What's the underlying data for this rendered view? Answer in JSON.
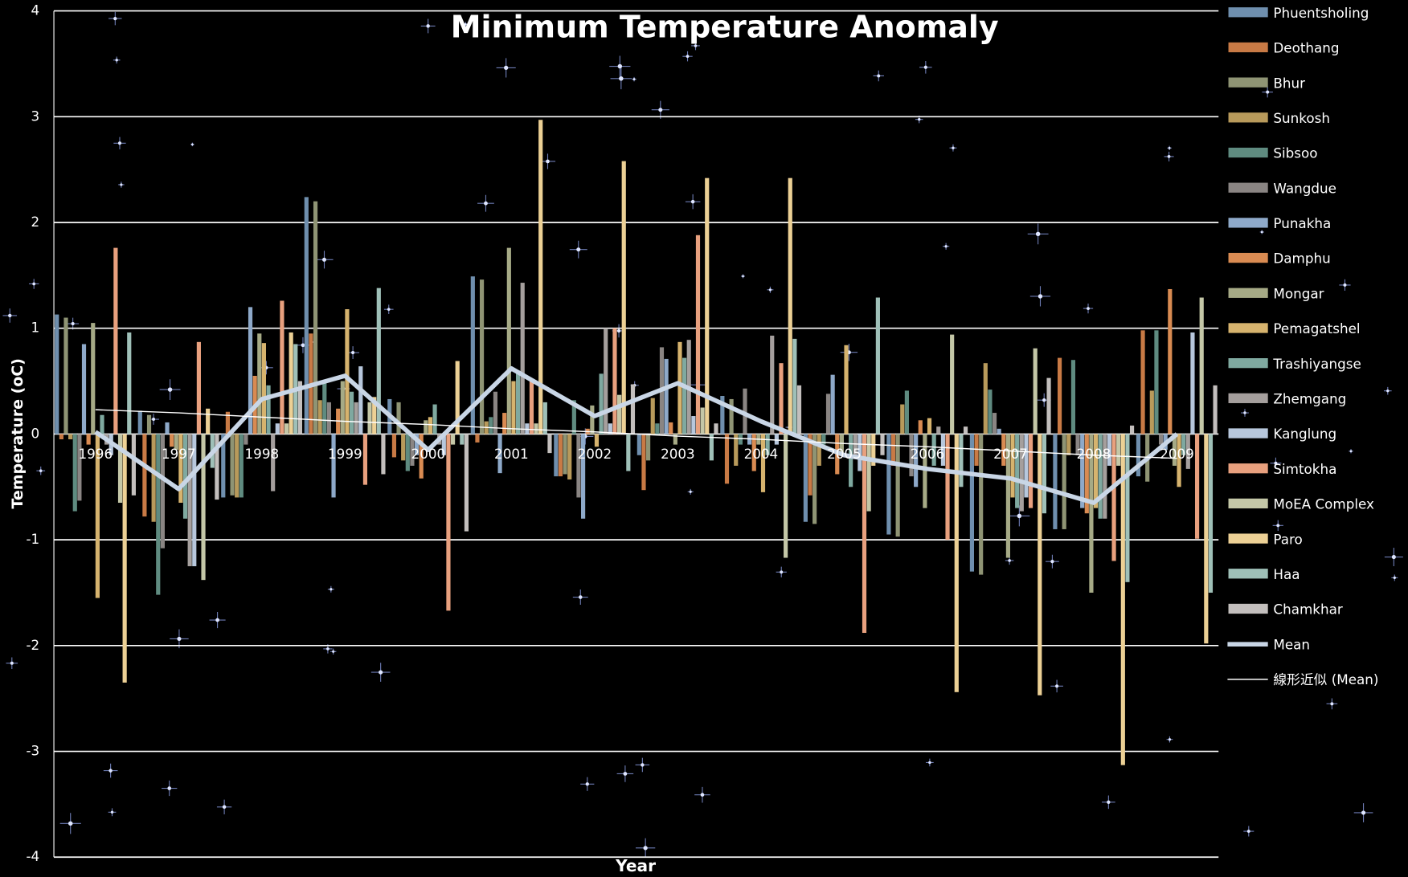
{
  "chart_data": {
    "type": "bar",
    "title": "Minimum Temperature Anomaly",
    "x_label": "Year",
    "y_label": "Temperature (oC)",
    "categories": [
      "1996",
      "1997",
      "1998",
      "1999",
      "2000",
      "2001",
      "2002",
      "2003",
      "2004",
      "2005",
      "2006",
      "2007",
      "2008",
      "2009"
    ],
    "ylim": [
      -4,
      4
    ],
    "yticks": [
      -4,
      -3,
      -2,
      -1,
      0,
      1,
      2,
      3,
      4
    ],
    "grid": true,
    "legend": "right",
    "series": [
      {
        "name": "Phuentsholing",
        "color": "#6f8fae",
        "values": [
          1.13,
          0.22,
          -0.6,
          2.24,
          0.33,
          1.49,
          -0.4,
          -0.2,
          0.36,
          -0.83,
          -0.95,
          -1.3,
          -0.9,
          -0.4
        ]
      },
      {
        "name": "Deothang",
        "color": "#c87a45",
        "values": [
          -0.05,
          -0.78,
          0.21,
          0.95,
          -0.22,
          -0.08,
          -0.4,
          -0.53,
          -0.47,
          -0.58,
          -0.3,
          -0.3,
          0.72,
          0.98
        ]
      },
      {
        "name": "Bhur",
        "color": "#8f9474",
        "values": [
          1.1,
          0.18,
          -0.58,
          2.2,
          0.3,
          1.46,
          -0.38,
          -0.25,
          0.33,
          -0.85,
          -0.97,
          -1.33,
          -0.9,
          -0.45
        ]
      },
      {
        "name": "Sunkosh",
        "color": "#b89a5b",
        "values": [
          -0.05,
          -0.83,
          -0.6,
          0.32,
          -0.25,
          0.12,
          -0.43,
          0.34,
          -0.3,
          -0.3,
          0.28,
          0.67,
          -0.2,
          0.41
        ]
      },
      {
        "name": "Sibsoo",
        "color": "#5f8b80",
        "values": [
          -0.73,
          -1.52,
          -0.6,
          0.5,
          -0.35,
          0.16,
          0.32,
          0.1,
          -0.1,
          -0.1,
          0.41,
          0.42,
          0.7,
          0.98
        ]
      },
      {
        "name": "Wangdue",
        "color": "#8a8583",
        "values": [
          -0.63,
          -1.08,
          -0.1,
          0.3,
          -0.3,
          0.4,
          -0.6,
          0.82,
          0.43,
          0.38,
          -0.4,
          0.2,
          -0.2,
          -0.1
        ]
      },
      {
        "name": "Punakha",
        "color": "#8ea9c9",
        "values": [
          0.85,
          0.11,
          1.2,
          -0.6,
          -0.2,
          -0.37,
          -0.8,
          0.71,
          -0.1,
          0.56,
          -0.5,
          0.05,
          -0.7,
          -0.15
        ]
      },
      {
        "name": "Damphu",
        "color": "#d98b52",
        "values": [
          -0.1,
          -0.12,
          0.55,
          0.24,
          -0.42,
          0.2,
          0.05,
          0.11,
          -0.35,
          -0.38,
          0.13,
          -0.3,
          -0.75,
          1.37
        ]
      },
      {
        "name": "Mongar",
        "color": "#a6aa86",
        "values": [
          1.05,
          -0.15,
          0.95,
          0.5,
          0.13,
          1.76,
          0.27,
          -0.1,
          -0.1,
          -0.2,
          -0.7,
          -1.17,
          -1.5,
          -0.3
        ]
      },
      {
        "name": "Pemagatshel",
        "color": "#d6b36e",
        "values": [
          -1.55,
          -0.65,
          0.86,
          1.18,
          0.16,
          0.5,
          -0.12,
          0.87,
          -0.55,
          0.84,
          0.15,
          -0.6,
          -0.7,
          -0.5
        ]
      },
      {
        "name": "Trashiyangse",
        "color": "#7fa9a0",
        "values": [
          0.18,
          -0.8,
          0.46,
          0.4,
          0.28,
          0.6,
          0.57,
          0.72,
          -0.2,
          -0.5,
          -0.3,
          -0.7,
          -0.8,
          -0.2
        ]
      },
      {
        "name": "Zhemgang",
        "color": "#a59f9d",
        "values": [
          -0.1,
          -1.25,
          -0.54,
          0.3,
          -0.1,
          1.43,
          1.0,
          0.89,
          0.93,
          -0.2,
          0.07,
          -0.73,
          -0.8,
          -0.33
        ]
      },
      {
        "name": "Kanglung",
        "color": "#b7c7dc",
        "values": [
          -0.2,
          -1.25,
          0.1,
          0.64,
          -0.2,
          0.1,
          0.1,
          0.17,
          -0.1,
          -0.35,
          -0.3,
          -0.6,
          -0.3,
          0.96
        ]
      },
      {
        "name": "Simtokha",
        "color": "#e8a07e",
        "values": [
          1.76,
          0.87,
          1.26,
          -0.48,
          -1.67,
          0.5,
          1.0,
          1.88,
          0.67,
          -1.88,
          -1.0,
          -0.7,
          -1.2,
          -0.99
        ]
      },
      {
        "name": "MoEA Complex",
        "color": "#c4c7a7",
        "values": [
          -0.65,
          -1.38,
          0.1,
          0.3,
          -0.1,
          0.1,
          0.37,
          0.25,
          -1.17,
          -0.73,
          0.94,
          0.81,
          -0.3,
          1.29
        ]
      },
      {
        "name": "Paro",
        "color": "#ecd095",
        "values": [
          -2.35,
          0.24,
          0.96,
          0.35,
          0.69,
          2.97,
          2.58,
          2.42,
          2.42,
          -0.3,
          -2.44,
          -2.47,
          -3.13,
          -1.98
        ]
      },
      {
        "name": "Haa",
        "color": "#9fc0b8",
        "values": [
          0.96,
          -0.32,
          0.85,
          1.38,
          -0.1,
          0.3,
          -0.35,
          -0.25,
          0.9,
          1.29,
          -0.5,
          -0.75,
          -1.4,
          -1.5
        ]
      },
      {
        "name": "Chamkhar",
        "color": "#c3bfbd",
        "values": [
          -0.58,
          -0.62,
          0.5,
          -0.38,
          -0.92,
          -0.18,
          0.47,
          0.1,
          0.46,
          -0.2,
          0.07,
          0.53,
          0.08,
          0.46
        ]
      },
      {
        "name": "Mean",
        "color": "#c9d6e6",
        "style": "line",
        "values": [
          0.02,
          -0.52,
          0.33,
          0.55,
          -0.15,
          0.62,
          0.17,
          0.48,
          0.12,
          -0.2,
          -0.33,
          -0.42,
          -0.65,
          0.0
        ]
      },
      {
        "name": "線形近似 (Mean)",
        "color": "#ffffff",
        "style": "line",
        "trendline": true,
        "values": [
          0.23,
          0.2,
          0.16,
          0.12,
          0.09,
          0.05,
          0.02,
          -0.02,
          -0.05,
          -0.09,
          -0.12,
          -0.16,
          -0.2,
          -0.23
        ]
      }
    ]
  }
}
